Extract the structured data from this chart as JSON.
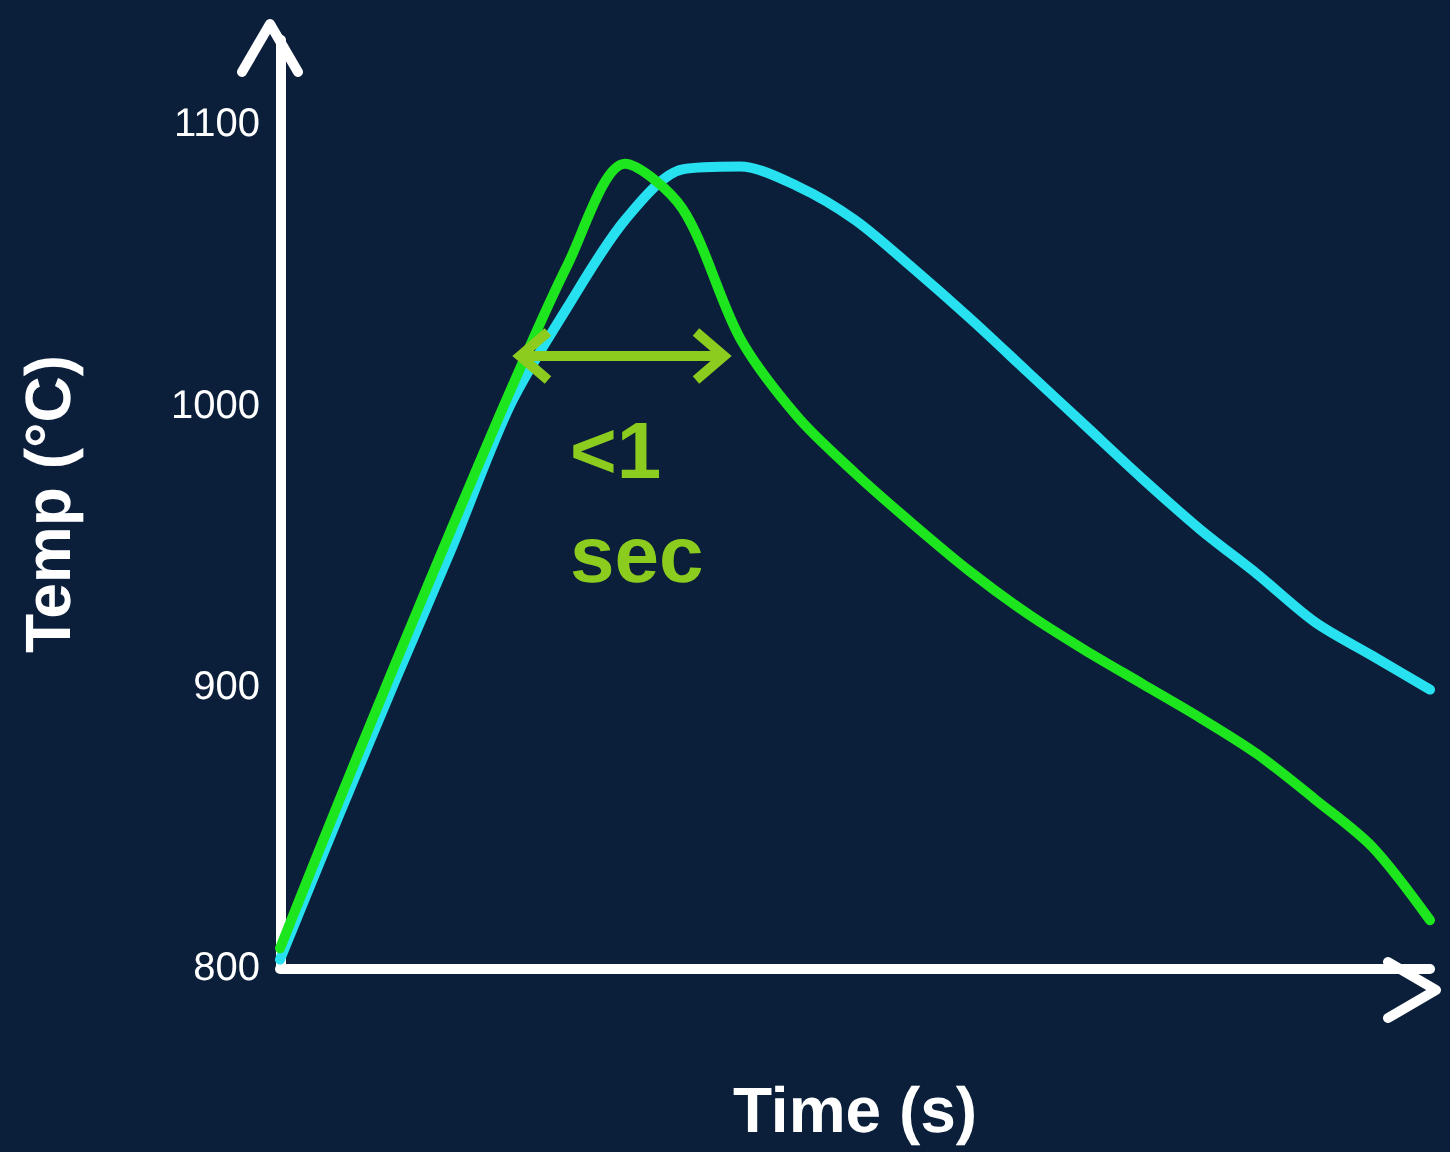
{
  "chart_data": {
    "type": "line",
    "xlabel": "Time (s)",
    "ylabel": "Temp (°C)",
    "categories": [
      null,
      null,
      null,
      null,
      null,
      null,
      null,
      null,
      null,
      null,
      null,
      null,
      null,
      null,
      null,
      null,
      null,
      null,
      null,
      null,
      null
    ],
    "series": [
      {
        "color": "#27e0f0",
        "values": [
          803,
          853,
          902,
          950,
          1000,
          1035,
          1066,
          1084,
          1085,
          1078,
          1066,
          1049,
          1031,
          1012,
          993,
          974,
          956,
          940,
          923,
          911,
          899
        ]
      },
      {
        "color": "#1ee61e",
        "values": [
          807,
          858,
          908,
          957,
          1005,
          1050,
          1086,
          1070,
          1024,
          996,
          976,
          958,
          941,
          926,
          913,
          901,
          889,
          876,
          860,
          843,
          817
        ]
      }
    ],
    "ylim": [
      800,
      1130
    ],
    "yticks": [
      800,
      900,
      1000,
      1100
    ],
    "grid": false,
    "marker": "none",
    "line_style": "solid",
    "annotations": [
      "<1\nsec"
    ]
  }
}
